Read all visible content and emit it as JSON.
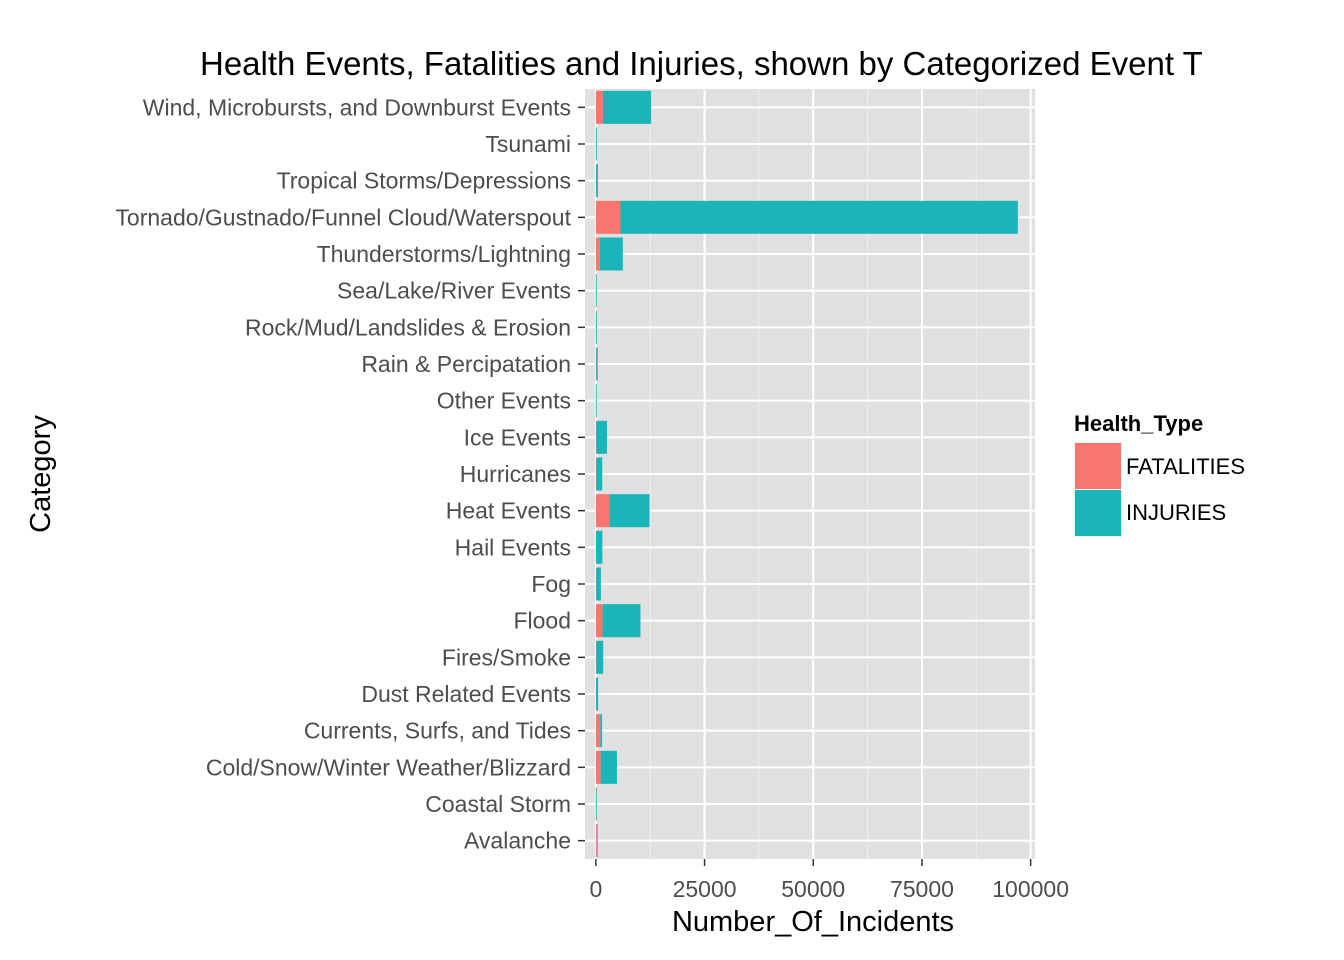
{
  "chart_data": {
    "type": "bar",
    "orientation": "horizontal",
    "stacked": true,
    "title": "Health Events, Fatalities and Injuries, shown by Categorized Event T",
    "xlabel": "Number_Of_Incidents",
    "ylabel": "Category",
    "xlim": [
      -2500,
      101000
    ],
    "xticks": [
      0,
      25000,
      50000,
      75000,
      100000
    ],
    "grid": true,
    "legend": {
      "title": "Health_Type",
      "position": "right"
    },
    "colors": {
      "FATALITIES": "#F8766D",
      "INJURIES": "#1AB5B8",
      "panel": "#E0E0E0",
      "grid": "#FFFFFF",
      "tick_text": "#4D4D4D"
    },
    "categories": [
      "Avalanche",
      "Coastal Storm",
      "Cold/Snow/Winter Weather/Blizzard",
      "Currents, Surfs, and Tides",
      "Dust Related Events",
      "Fires/Smoke",
      "Flood",
      "Fog",
      "Hail Events",
      "Heat Events",
      "Hurricanes",
      "Ice Events",
      "Other Events",
      "Rain & Percipatation",
      "Rock/Mud/Landslides & Erosion",
      "Sea/Lake/River Events",
      "Thunderstorms/Lightning",
      "Tornado/Gustnado/Funnel Cloud/Waterspout",
      "Tropical Storms/Depressions",
      "Tsunami",
      "Wind, Microbursts, and Downburst Events"
    ],
    "series": [
      {
        "name": "FATALITIES",
        "values": [
          225,
          10,
          1100,
          1000,
          25,
          90,
          1550,
          80,
          20,
          3150,
          135,
          110,
          5,
          110,
          45,
          10,
          900,
          5650,
          70,
          35,
          1600
        ]
      },
      {
        "name": "INJURIES",
        "values": [
          170,
          10,
          3750,
          420,
          480,
          1600,
          8700,
          1080,
          1480,
          9200,
          1330,
          2450,
          5,
          310,
          55,
          5,
          5300,
          91400,
          400,
          130,
          11100
        ]
      }
    ]
  }
}
